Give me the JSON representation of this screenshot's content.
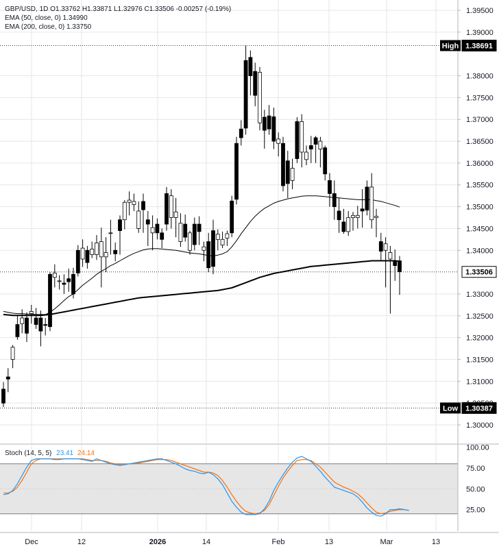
{
  "header": {
    "symbol_line": "GBP/USD, 1D  O1.33762  H1.33871  L1.32976  C1.33506  -0.00257 (-0.19%)",
    "ema50_line": "EMA (50, close, 0)  1.34990",
    "ema200_line": "EMA (200, close, 0)  1.33750"
  },
  "price_axis": {
    "ticks": [
      "1.39500",
      "1.39000",
      "1.38000",
      "1.37500",
      "1.37000",
      "1.36500",
      "1.36000",
      "1.35500",
      "1.35000",
      "1.34500",
      "1.34000",
      "1.33000",
      "1.32500",
      "1.32000",
      "1.31500",
      "1.31000",
      "1.30500",
      "1.30000"
    ],
    "tick_values": [
      1.395,
      1.39,
      1.38,
      1.375,
      1.37,
      1.365,
      1.36,
      1.355,
      1.35,
      1.345,
      1.34,
      1.33,
      1.325,
      1.32,
      1.315,
      1.31,
      1.305,
      1.3
    ],
    "high_label": "High",
    "high_value": "1.38691",
    "low_label": "Low",
    "low_value": "1.30387",
    "last_value": "1.33506"
  },
  "stoch": {
    "title": "Stoch (14, 5, 5)",
    "k_value": "23.41",
    "d_value": "24.14",
    "k_color": "#2196f3",
    "d_color": "#ff6d00",
    "ticks": [
      "100.00",
      "75.00",
      "50.00",
      "25.00"
    ],
    "tick_values": [
      100,
      75,
      50,
      25
    ],
    "band": [
      20,
      80
    ]
  },
  "time_axis": {
    "labels": [
      "Dec",
      "12",
      "2026",
      "14",
      "Feb",
      "13",
      "Mar",
      "13"
    ]
  },
  "colors": {
    "up": "#ffffff",
    "down": "#000000",
    "candle_border": "#000000",
    "ema50": "#000000",
    "ema200": "#000000",
    "grid": "#e6e6e6"
  },
  "chart_data": {
    "type": "candlestick",
    "instrument": "GBP/USD",
    "timeframe": "1D",
    "ohlc": [
      [
        1.3082,
        1.3098,
        1.3041,
        1.305
      ],
      [
        1.311,
        1.313,
        1.3075,
        1.3105
      ],
      [
        1.315,
        1.3183,
        1.313,
        1.3178
      ],
      [
        1.323,
        1.325,
        1.3195,
        1.3202
      ],
      [
        1.3232,
        1.3265,
        1.321,
        1.3245
      ],
      [
        1.3245,
        1.3258,
        1.319,
        1.321
      ],
      [
        1.3255,
        1.3275,
        1.3232,
        1.326
      ],
      [
        1.3245,
        1.3268,
        1.322,
        1.323
      ],
      [
        1.3245,
        1.3262,
        1.318,
        1.3215
      ],
      [
        1.323,
        1.3245,
        1.3205,
        1.3228
      ],
      [
        1.3345,
        1.335,
        1.3215,
        1.3225
      ],
      [
        1.3338,
        1.3368,
        1.3315,
        1.3348
      ],
      [
        1.333,
        1.3343,
        1.331,
        1.333
      ],
      [
        1.3325,
        1.3345,
        1.33,
        1.3322
      ],
      [
        1.3335,
        1.3358,
        1.3305,
        1.3328
      ],
      [
        1.3345,
        1.336,
        1.329,
        1.33
      ],
      [
        1.34,
        1.3412,
        1.334,
        1.3348
      ],
      [
        1.338,
        1.3425,
        1.3362,
        1.3405
      ],
      [
        1.34,
        1.341,
        1.3358,
        1.3372
      ],
      [
        1.339,
        1.342,
        1.3382,
        1.3403
      ],
      [
        1.339,
        1.3435,
        1.3378,
        1.3417
      ],
      [
        1.3385,
        1.3452,
        1.3315,
        1.342
      ],
      [
        1.3385,
        1.343,
        1.335,
        1.3395
      ],
      [
        1.344,
        1.347,
        1.339,
        1.344
      ],
      [
        1.34,
        1.3418,
        1.3375,
        1.3392
      ],
      [
        1.347,
        1.348,
        1.339,
        1.3445
      ],
      [
        1.347,
        1.3515,
        1.3448,
        1.351
      ],
      [
        1.351,
        1.3535,
        1.348,
        1.3515
      ],
      [
        1.3505,
        1.353,
        1.349,
        1.3512
      ],
      [
        1.345,
        1.3512,
        1.344,
        1.349
      ],
      [
        1.3512,
        1.353,
        1.344,
        1.3493
      ],
      [
        1.347,
        1.349,
        1.341,
        1.346
      ],
      [
        1.344,
        1.348,
        1.34,
        1.3452
      ],
      [
        1.346,
        1.3473,
        1.3425,
        1.344
      ],
      [
        1.344,
        1.345,
        1.3405,
        1.3425
      ],
      [
        1.353,
        1.3545,
        1.3445,
        1.346
      ],
      [
        1.3475,
        1.354,
        1.345,
        1.3525
      ],
      [
        1.3475,
        1.352,
        1.343,
        1.3488
      ],
      [
        1.342,
        1.3485,
        1.3408,
        1.3462
      ],
      [
        1.346,
        1.3482,
        1.342,
        1.343
      ],
      [
        1.34,
        1.3445,
        1.339,
        1.344
      ],
      [
        1.346,
        1.3475,
        1.34,
        1.3413
      ],
      [
        1.346,
        1.3478,
        1.3412,
        1.3443
      ],
      [
        1.34,
        1.342,
        1.3375,
        1.3408
      ],
      [
        1.342,
        1.344,
        1.335,
        1.336
      ],
      [
        1.3445,
        1.347,
        1.3345,
        1.3363
      ],
      [
        1.3425,
        1.3448,
        1.34,
        1.3437
      ],
      [
        1.3412,
        1.3443,
        1.3405,
        1.3425
      ],
      [
        1.3428,
        1.3445,
        1.341,
        1.3438
      ],
      [
        1.3513,
        1.3525,
        1.343,
        1.344
      ],
      [
        1.3645,
        1.366,
        1.3505,
        1.3517
      ],
      [
        1.3678,
        1.3698,
        1.364,
        1.3658
      ],
      [
        1.3835,
        1.3869,
        1.3665,
        1.368
      ],
      [
        1.3842,
        1.3858,
        1.3755,
        1.38
      ],
      [
        1.381,
        1.383,
        1.373,
        1.3755
      ],
      [
        1.3692,
        1.382,
        1.3675,
        1.3808
      ],
      [
        1.3705,
        1.3722,
        1.3633,
        1.3675
      ],
      [
        1.3708,
        1.3733,
        1.3665,
        1.3678
      ],
      [
        1.3706,
        1.3727,
        1.3632,
        1.365
      ],
      [
        1.3645,
        1.367,
        1.3615,
        1.3655
      ],
      [
        1.3645,
        1.366,
        1.3535,
        1.3548
      ],
      [
        1.3605,
        1.3628,
        1.352,
        1.3553
      ],
      [
        1.356,
        1.361,
        1.354,
        1.3588
      ],
      [
        1.3695,
        1.3705,
        1.36,
        1.361
      ],
      [
        1.3625,
        1.3712,
        1.359,
        1.3695
      ],
      [
        1.3608,
        1.364,
        1.3595,
        1.3625
      ],
      [
        1.364,
        1.3662,
        1.36,
        1.3632
      ],
      [
        1.3658,
        1.3662,
        1.36,
        1.3643
      ],
      [
        1.3632,
        1.366,
        1.359,
        1.365
      ],
      [
        1.3635,
        1.364,
        1.356,
        1.3575
      ],
      [
        1.356,
        1.3577,
        1.35,
        1.353
      ],
      [
        1.353,
        1.356,
        1.347,
        1.35
      ],
      [
        1.349,
        1.352,
        1.344,
        1.347
      ],
      [
        1.3465,
        1.3495,
        1.3438,
        1.3443
      ],
      [
        1.3443,
        1.349,
        1.3433,
        1.3475
      ],
      [
        1.3475,
        1.3488,
        1.3445,
        1.348
      ],
      [
        1.3475,
        1.3502,
        1.345,
        1.348
      ],
      [
        1.3495,
        1.354,
        1.3452,
        1.349
      ],
      [
        1.3545,
        1.356,
        1.348,
        1.3492
      ],
      [
        1.347,
        1.3577,
        1.345,
        1.3545
      ],
      [
        1.3475,
        1.3495,
        1.343,
        1.3478
      ],
      [
        1.342,
        1.344,
        1.3375,
        1.3398
      ],
      [
        1.34,
        1.343,
        1.3315,
        1.3415
      ],
      [
        1.338,
        1.341,
        1.3255,
        1.3395
      ],
      [
        1.3376,
        1.3402,
        1.333,
        1.3365
      ],
      [
        1.3376,
        1.3387,
        1.3298,
        1.3351
      ]
    ],
    "ema50": [
      1.326,
      1.3258,
      1.3256,
      1.3255,
      1.3255,
      1.3254,
      1.3254,
      1.3253,
      1.3253,
      1.3253,
      1.3258,
      1.3266,
      1.3275,
      1.3285,
      1.3294,
      1.33,
      1.331,
      1.332,
      1.3328,
      1.3336,
      1.3345,
      1.3352,
      1.3358,
      1.3365,
      1.337,
      1.3376,
      1.3382,
      1.3388,
      1.3393,
      1.3397,
      1.3401,
      1.3403,
      1.3404,
      1.3404,
      1.3403,
      1.3402,
      1.3401,
      1.34,
      1.3398,
      1.3396,
      1.3394,
      1.3393,
      1.3392,
      1.339,
      1.3388,
      1.3387,
      1.3389,
      1.3392,
      1.3397,
      1.3408,
      1.3422,
      1.3438,
      1.3452,
      1.3466,
      1.3478,
      1.3488,
      1.3496,
      1.3502,
      1.3508,
      1.3512,
      1.3515,
      1.3518,
      1.352,
      1.3522,
      1.3524,
      1.3525,
      1.3525,
      1.3525,
      1.3524,
      1.3523,
      1.3522,
      1.3521,
      1.352,
      1.3519,
      1.3518,
      1.3517,
      1.3516,
      1.3516,
      1.3516,
      1.3516,
      1.3514,
      1.3512,
      1.3509,
      1.3506,
      1.3503,
      1.3499
    ],
    "ema200": [
      1.3253,
      1.3252,
      1.3251,
      1.3251,
      1.3251,
      1.3251,
      1.3251,
      1.3251,
      1.3251,
      1.3252,
      1.3253,
      1.3255,
      1.3257,
      1.3259,
      1.3261,
      1.3263,
      1.3265,
      1.3267,
      1.3269,
      1.3271,
      1.3273,
      1.3275,
      1.3277,
      1.3279,
      1.3281,
      1.3283,
      1.3285,
      1.3287,
      1.3289,
      1.3291,
      1.3292,
      1.3293,
      1.3294,
      1.3295,
      1.3296,
      1.3297,
      1.3298,
      1.3299,
      1.33,
      1.3301,
      1.3302,
      1.3303,
      1.3304,
      1.3305,
      1.3306,
      1.3307,
      1.3308,
      1.331,
      1.3312,
      1.3314,
      1.3318,
      1.3322,
      1.3326,
      1.333,
      1.3334,
      1.3338,
      1.3341,
      1.3344,
      1.3347,
      1.3349,
      1.3351,
      1.3353,
      1.3355,
      1.3357,
      1.3359,
      1.3361,
      1.3363,
      1.3364,
      1.3365,
      1.3366,
      1.3367,
      1.3368,
      1.3369,
      1.337,
      1.3371,
      1.3372,
      1.3373,
      1.3374,
      1.3375,
      1.3376,
      1.3376,
      1.3376,
      1.3376,
      1.3376,
      1.3376,
      1.3375
    ],
    "stoch_k": [
      43,
      44,
      48,
      56,
      66,
      76,
      84,
      86,
      86,
      86,
      86,
      85,
      85,
      86,
      86,
      86,
      86,
      85,
      84,
      83,
      86,
      84,
      82,
      80,
      79,
      78,
      79,
      80,
      81,
      82,
      83,
      84,
      85,
      86,
      86,
      84,
      82,
      80,
      77,
      74,
      72,
      71,
      69,
      68,
      70,
      67,
      62,
      55,
      45,
      35,
      28,
      22,
      19,
      19,
      19,
      20,
      26,
      35,
      48,
      58,
      67,
      75,
      82,
      87,
      89,
      86,
      83,
      77,
      71,
      64,
      58,
      52,
      50,
      48,
      46,
      44,
      40,
      34,
      27,
      22,
      18,
      17,
      20,
      25,
      25,
      26,
      25,
      24
    ],
    "stoch_d": [
      45,
      45,
      47,
      52,
      60,
      70,
      80,
      84,
      86,
      86,
      86,
      86,
      86,
      86,
      86,
      86,
      86,
      86,
      85,
      84,
      84,
      84,
      83,
      81,
      80,
      79,
      79,
      80,
      80,
      81,
      82,
      83,
      84,
      85,
      85,
      85,
      84,
      82,
      80,
      78,
      76,
      74,
      72,
      70,
      70,
      69,
      66,
      60,
      52,
      43,
      35,
      28,
      23,
      21,
      20,
      21,
      24,
      31,
      42,
      53,
      63,
      71,
      78,
      84,
      85,
      85,
      84,
      80,
      76,
      70,
      64,
      58,
      55,
      52,
      50,
      47,
      44,
      39,
      33,
      27,
      22,
      20,
      21,
      23,
      24,
      25,
      25,
      24
    ]
  }
}
